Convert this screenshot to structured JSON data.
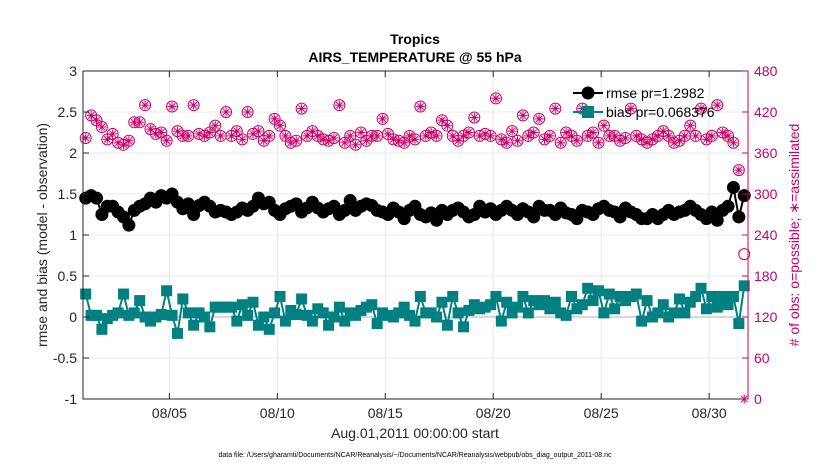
{
  "chart_data": {
    "type": "line",
    "title": "Tropics",
    "subtitle": "AIRS_TEMPERATURE @ 55 hPa",
    "ylabel": "rmse and bias (model - observation)",
    "ylabel_right": "# of obs: o=possible; ∗=assimilated",
    "xlabel": "Aug.01,2011 00:00:00 start",
    "footnote": "data file: /Users/gharamti/Documents/NCAR/Reanalysis/~/Documents/NCAR/Reanalysis/webpub/obs_diag_output_2011-08.nc",
    "xlim": [
      1,
      31.8
    ],
    "ylim": [
      -1,
      3
    ],
    "ylim_right": [
      0,
      480
    ],
    "x_ticks": [
      5,
      10,
      15,
      20,
      25,
      30
    ],
    "x_tick_labels": [
      "08/05",
      "08/10",
      "08/15",
      "08/20",
      "08/25",
      "08/30"
    ],
    "y_ticks": [
      -1,
      -0.5,
      0,
      0.5,
      1,
      1.5,
      2,
      2.5,
      3
    ],
    "y_tick_labels": [
      "-1",
      "-0.5",
      "0",
      "0.5",
      "1",
      "1.5",
      "2",
      "2.5",
      "3"
    ],
    "y_ticks_right": [
      0,
      60,
      120,
      180,
      240,
      300,
      360,
      420,
      480
    ],
    "y_tick_labels_right": [
      "0",
      "60",
      "120",
      "180",
      "240",
      "300",
      "360",
      "420",
      "480"
    ],
    "legend": {
      "position": "top-right",
      "entries": [
        "rmse pr=1.2982",
        "bias pr=0.068376"
      ]
    },
    "series": [
      {
        "name": "rmse pr=1.2982",
        "color": "#000000",
        "x": [
          1.125,
          1.375,
          1.625,
          1.875,
          2.125,
          2.375,
          2.625,
          2.875,
          3.125,
          3.375,
          3.625,
          3.875,
          4.125,
          4.375,
          4.625,
          4.875,
          5.125,
          5.375,
          5.625,
          5.875,
          6.125,
          6.375,
          6.625,
          6.875,
          7.125,
          7.375,
          7.625,
          7.875,
          8.125,
          8.375,
          8.625,
          8.875,
          9.125,
          9.375,
          9.625,
          9.875,
          10.125,
          10.375,
          10.625,
          10.875,
          11.125,
          11.375,
          11.625,
          11.875,
          12.125,
          12.375,
          12.625,
          12.875,
          13.125,
          13.375,
          13.625,
          13.875,
          14.125,
          14.375,
          14.625,
          14.875,
          15.125,
          15.375,
          15.625,
          15.875,
          16.125,
          16.375,
          16.625,
          16.875,
          17.125,
          17.375,
          17.625,
          17.875,
          18.125,
          18.375,
          18.625,
          18.875,
          19.125,
          19.375,
          19.625,
          19.875,
          20.125,
          20.375,
          20.625,
          20.875,
          21.125,
          21.375,
          21.625,
          21.875,
          22.125,
          22.375,
          22.625,
          22.875,
          23.125,
          23.375,
          23.625,
          23.875,
          24.125,
          24.375,
          24.625,
          24.875,
          25.125,
          25.375,
          25.625,
          25.875,
          26.125,
          26.375,
          26.625,
          26.875,
          27.125,
          27.375,
          27.625,
          27.875,
          28.125,
          28.375,
          28.625,
          28.875,
          29.125,
          29.375,
          29.625,
          29.875,
          30.125,
          30.375,
          30.625,
          30.875,
          31.125,
          31.375,
          31.625
        ],
        "values": [
          1.45,
          1.48,
          1.45,
          1.25,
          1.35,
          1.35,
          1.28,
          1.22,
          1.12,
          1.3,
          1.35,
          1.38,
          1.45,
          1.4,
          1.48,
          1.45,
          1.5,
          1.4,
          1.32,
          1.38,
          1.25,
          1.36,
          1.4,
          1.35,
          1.28,
          1.3,
          1.28,
          1.25,
          1.28,
          1.33,
          1.3,
          1.35,
          1.45,
          1.38,
          1.4,
          1.3,
          1.25,
          1.32,
          1.35,
          1.38,
          1.28,
          1.33,
          1.4,
          1.33,
          1.28,
          1.32,
          1.35,
          1.25,
          1.3,
          1.42,
          1.3,
          1.35,
          1.38,
          1.36,
          1.3,
          1.28,
          1.25,
          1.33,
          1.28,
          1.2,
          1.3,
          1.35,
          1.25,
          1.22,
          1.27,
          1.18,
          1.3,
          1.25,
          1.3,
          1.33,
          1.28,
          1.22,
          1.25,
          1.35,
          1.28,
          1.32,
          1.25,
          1.3,
          1.35,
          1.3,
          1.25,
          1.32,
          1.28,
          1.22,
          1.35,
          1.3,
          1.3,
          1.25,
          1.33,
          1.27,
          1.25,
          1.2,
          1.3,
          1.28,
          1.25,
          1.32,
          1.35,
          1.3,
          1.28,
          1.22,
          1.33,
          1.28,
          1.25,
          1.2,
          1.2,
          1.25,
          1.2,
          1.25,
          1.3,
          1.25,
          1.28,
          1.3,
          1.35,
          1.3,
          1.25,
          1.2,
          1.28,
          1.18,
          1.3,
          1.35,
          1.58,
          1.22,
          1.48
        ]
      },
      {
        "name": "bias pr=0.068376",
        "color": "#008080",
        "x": [
          1.125,
          1.375,
          1.625,
          1.875,
          2.125,
          2.375,
          2.625,
          2.875,
          3.125,
          3.375,
          3.625,
          3.875,
          4.125,
          4.375,
          4.625,
          4.875,
          5.125,
          5.375,
          5.625,
          5.875,
          6.125,
          6.375,
          6.625,
          6.875,
          7.125,
          7.375,
          7.625,
          7.875,
          8.125,
          8.375,
          8.625,
          8.875,
          9.125,
          9.375,
          9.625,
          9.875,
          10.125,
          10.375,
          10.625,
          10.875,
          11.125,
          11.375,
          11.625,
          11.875,
          12.125,
          12.375,
          12.625,
          12.875,
          13.125,
          13.375,
          13.625,
          13.875,
          14.125,
          14.375,
          14.625,
          14.875,
          15.125,
          15.375,
          15.625,
          15.875,
          16.125,
          16.375,
          16.625,
          16.875,
          17.125,
          17.375,
          17.625,
          17.875,
          18.125,
          18.375,
          18.625,
          18.875,
          19.125,
          19.375,
          19.625,
          19.875,
          20.125,
          20.375,
          20.625,
          20.875,
          21.125,
          21.375,
          21.625,
          21.875,
          22.125,
          22.375,
          22.625,
          22.875,
          23.125,
          23.375,
          23.625,
          23.875,
          24.125,
          24.375,
          24.625,
          24.875,
          25.125,
          25.375,
          25.625,
          25.875,
          26.125,
          26.375,
          26.625,
          26.875,
          27.125,
          27.375,
          27.625,
          27.875,
          28.125,
          28.375,
          28.625,
          28.875,
          29.125,
          29.375,
          29.625,
          29.875,
          30.125,
          30.375,
          30.625,
          30.875,
          31.125,
          31.375,
          31.625
        ],
        "values": [
          0.28,
          0.02,
          0.02,
          -0.15,
          -0.02,
          0.02,
          0.05,
          0.28,
          0.02,
          0.05,
          0.2,
          0.0,
          -0.05,
          0.0,
          0.03,
          0.32,
          0.02,
          -0.2,
          0.22,
          0.05,
          -0.1,
          0.05,
          0.0,
          -0.12,
          0.12,
          0.12,
          0.12,
          0.12,
          -0.05,
          0.15,
          0.02,
          0.18,
          -0.1,
          0.0,
          -0.15,
          0.05,
          0.25,
          -0.05,
          0.08,
          0.03,
          0.22,
          0.02,
          -0.05,
          0.1,
          0.05,
          -0.1,
          0.0,
          0.12,
          -0.05,
          0.05,
          0.02,
          0.08,
          0.12,
          0.15,
          -0.08,
          0.05,
          0.02,
          0.0,
          0.05,
          0.12,
          0.02,
          -0.05,
          0.25,
          0.05,
          0.05,
          0.0,
          0.18,
          -0.1,
          0.25,
          0.05,
          -0.12,
          0.08,
          0.15,
          0.1,
          0.12,
          0.15,
          0.25,
          -0.05,
          0.18,
          0.05,
          0.12,
          0.25,
          0.05,
          0.2,
          0.15,
          0.2,
          0.1,
          0.18,
          0.05,
          0.02,
          0.25,
          0.1,
          0.15,
          0.35,
          0.2,
          0.32,
          0.05,
          0.28,
          0.1,
          0.25,
          0.2,
          0.25,
          0.28,
          -0.05,
          0.2,
          0.0,
          0.05,
          0.15,
          0.0,
          0.05,
          0.22,
          0.05,
          0.18,
          0.25,
          0.35,
          0.1,
          0.25,
          0.12,
          0.25,
          0.15,
          0.25,
          -0.08,
          0.38
        ]
      },
      {
        "name": "possible",
        "axis": "right",
        "color": "#cc0066",
        "x": [
          1.125,
          1.375,
          1.625,
          1.875,
          2.125,
          2.375,
          2.625,
          2.875,
          3.125,
          3.375,
          3.625,
          3.875,
          4.125,
          4.375,
          4.625,
          4.875,
          5.125,
          5.375,
          5.625,
          5.875,
          6.125,
          6.375,
          6.625,
          6.875,
          7.125,
          7.375,
          7.625,
          7.875,
          8.125,
          8.375,
          8.625,
          8.875,
          9.125,
          9.375,
          9.625,
          9.875,
          10.125,
          10.375,
          10.625,
          10.875,
          11.125,
          11.375,
          11.625,
          11.875,
          12.125,
          12.375,
          12.625,
          12.875,
          13.125,
          13.375,
          13.625,
          13.875,
          14.125,
          14.375,
          14.625,
          14.875,
          15.125,
          15.375,
          15.625,
          15.875,
          16.125,
          16.375,
          16.625,
          16.875,
          17.125,
          17.375,
          17.625,
          17.875,
          18.125,
          18.375,
          18.625,
          18.875,
          19.125,
          19.375,
          19.625,
          19.875,
          20.125,
          20.375,
          20.625,
          20.875,
          21.125,
          21.375,
          21.625,
          21.875,
          22.125,
          22.375,
          22.625,
          22.875,
          23.125,
          23.375,
          23.625,
          23.875,
          24.125,
          24.375,
          24.625,
          24.875,
          25.125,
          25.375,
          25.625,
          25.875,
          26.125,
          26.375,
          26.625,
          26.875,
          27.125,
          27.375,
          27.625,
          27.875,
          28.125,
          28.375,
          28.625,
          28.875,
          29.125,
          29.375,
          29.625,
          29.875,
          30.125,
          30.375,
          30.625,
          30.875,
          31.125,
          31.375,
          31.625
        ],
        "values": [
          382,
          415,
          408,
          398,
          380,
          388,
          375,
          372,
          378,
          405,
          405,
          430,
          395,
          388,
          390,
          378,
          428,
          392,
          385,
          385,
          430,
          388,
          385,
          390,
          400,
          385,
          420,
          385,
          392,
          380,
          420,
          388,
          392,
          378,
          385,
          410,
          400,
          385,
          375,
          378,
          425,
          385,
          392,
          385,
          380,
          378,
          382,
          430,
          375,
          385,
          372,
          390,
          378,
          385,
          385,
          410,
          388,
          380,
          378,
          375,
          385,
          380,
          428,
          385,
          390,
          385,
          408,
          400,
          385,
          378,
          385,
          390,
          412,
          385,
          388,
          385,
          440,
          380,
          375,
          392,
          378,
          415,
          385,
          390,
          410,
          380,
          385,
          425,
          375,
          390,
          385,
          378,
          425,
          385,
          390,
          375,
          400,
          385,
          385,
          378,
          382,
          425,
          385,
          380,
          375,
          380,
          385,
          392,
          385,
          375,
          378,
          385,
          400,
          385,
          425,
          380,
          385,
          430,
          390,
          385,
          375,
          335,
          212
        ]
      },
      {
        "name": "assimilated",
        "axis": "right",
        "color": "#cc0066",
        "x": [
          1.125,
          1.375,
          1.625,
          1.875,
          2.125,
          2.375,
          2.625,
          2.875,
          3.125,
          3.375,
          3.625,
          3.875,
          4.125,
          4.375,
          4.625,
          4.875,
          5.125,
          5.375,
          5.625,
          5.875,
          6.125,
          6.375,
          6.625,
          6.875,
          7.125,
          7.375,
          7.625,
          7.875,
          8.125,
          8.375,
          8.625,
          8.875,
          9.125,
          9.375,
          9.625,
          9.875,
          10.125,
          10.375,
          10.625,
          10.875,
          11.125,
          11.375,
          11.625,
          11.875,
          12.125,
          12.375,
          12.625,
          12.875,
          13.125,
          13.375,
          13.625,
          13.875,
          14.125,
          14.375,
          14.625,
          14.875,
          15.125,
          15.375,
          15.625,
          15.875,
          16.125,
          16.375,
          16.625,
          16.875,
          17.125,
          17.375,
          17.625,
          17.875,
          18.125,
          18.375,
          18.625,
          18.875,
          19.125,
          19.375,
          19.625,
          19.875,
          20.125,
          20.375,
          20.625,
          20.875,
          21.125,
          21.375,
          21.625,
          21.875,
          22.125,
          22.375,
          22.625,
          22.875,
          23.125,
          23.375,
          23.625,
          23.875,
          24.125,
          24.375,
          24.625,
          24.875,
          25.125,
          25.375,
          25.625,
          25.875,
          26.125,
          26.375,
          26.625,
          26.875,
          27.125,
          27.375,
          27.625,
          27.875,
          28.125,
          28.375,
          28.625,
          28.875,
          29.125,
          29.375,
          29.625,
          29.875,
          30.125,
          30.375,
          30.625,
          30.875,
          31.125,
          31.375,
          31.625
        ],
        "values": [
          382,
          415,
          408,
          398,
          380,
          388,
          375,
          372,
          378,
          405,
          405,
          430,
          395,
          388,
          390,
          378,
          428,
          392,
          385,
          385,
          430,
          388,
          385,
          390,
          400,
          385,
          420,
          385,
          392,
          380,
          420,
          388,
          392,
          378,
          385,
          410,
          400,
          385,
          375,
          378,
          425,
          385,
          392,
          385,
          380,
          378,
          382,
          430,
          375,
          385,
          372,
          390,
          378,
          385,
          385,
          410,
          388,
          380,
          378,
          375,
          385,
          380,
          428,
          385,
          390,
          385,
          408,
          400,
          385,
          378,
          385,
          390,
          412,
          385,
          388,
          385,
          440,
          380,
          375,
          392,
          378,
          415,
          385,
          390,
          410,
          380,
          385,
          425,
          375,
          390,
          385,
          378,
          425,
          385,
          390,
          375,
          400,
          385,
          385,
          378,
          382,
          425,
          385,
          380,
          375,
          380,
          385,
          392,
          385,
          375,
          378,
          385,
          400,
          385,
          425,
          380,
          385,
          430,
          390,
          385,
          375,
          335,
          0
        ]
      }
    ]
  }
}
